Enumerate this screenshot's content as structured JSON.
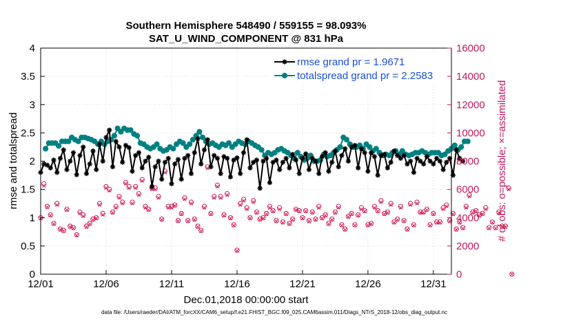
{
  "chart_data": {
    "type": "line",
    "title": [
      "Southern Hemisphere 548490 / 559155 = 98.093%",
      "SAT_U_WIND_COMPONENT @ 831 hPa"
    ],
    "xlabel": "Dec.01,2018 00:00:00 start",
    "ylabel": "rmse and totalspread",
    "ylabel_right": "# of obs: o=possible; ×=assimilated",
    "xlim": [
      0,
      31.375
    ],
    "ylim": [
      0,
      4
    ],
    "ylim_right": [
      0,
      16000
    ],
    "x_tick_values": [
      0,
      5,
      10,
      15,
      20,
      25,
      30
    ],
    "x_tick_labels": [
      "12/01",
      "12/06",
      "12/11",
      "12/16",
      "12/21",
      "12/26",
      "12/31"
    ],
    "y_ticks": [
      0,
      0.5,
      1,
      1.5,
      2,
      2.5,
      3,
      3.5,
      4
    ],
    "y_tick_labels": [
      "0",
      "0.5",
      "1",
      "1.5",
      "2",
      "2.5",
      "3",
      "3.5",
      "4"
    ],
    "y_right_ticks": [
      0,
      2000,
      4000,
      6000,
      8000,
      10000,
      12000,
      14000,
      16000
    ],
    "y_right_tick_labels": [
      "0",
      "2000",
      "4000",
      "6000",
      "8000",
      "10000",
      "12000",
      "14000",
      "16000"
    ],
    "footnote": "data file: /Users/raeder/DAI/ATM_forcXX/CAM6_setup/f.e21.FHIST_BGC.f09_025.CAM6assim.011/Diags_NTrS_2018-12/obs_diag_output.nc",
    "x_start": 0,
    "x_step": 0.25,
    "series": [
      {
        "name": "rmse grand pr = 1.9671",
        "color": "#000000",
        "marker": "asterisk",
        "values": [
          1.8,
          1.95,
          1.93,
          1.88,
          2.02,
          1.8,
          2.05,
          2.2,
          1.85,
          2.0,
          2.15,
          1.76,
          2.1,
          2.25,
          1.78,
          1.95,
          2.18,
          1.85,
          2.3,
          2.0,
          2.42,
          2.55,
          1.9,
          2.35,
          2.25,
          1.98,
          2.28,
          2.24,
          1.82,
          2.1,
          2.15,
          1.88,
          2.0,
          2.07,
          1.55,
          1.9,
          2.0,
          1.68,
          1.98,
          2.05,
          1.6,
          1.95,
          2.03,
          1.68,
          2.05,
          2.1,
          1.78,
          2.15,
          2.4,
          1.95,
          2.2,
          2.38,
          1.9,
          2.1,
          2.05,
          1.78,
          2.08,
          2.05,
          1.72,
          2.02,
          2.06,
          1.78,
          2.15,
          2.38,
          1.88,
          1.98,
          2.02,
          1.52,
          2.0,
          2.05,
          1.62,
          1.98,
          2.02,
          1.85,
          1.98,
          2.05,
          1.88,
          2.12,
          2.02,
          1.78,
          2.05,
          2.13,
          1.85,
          2.05,
          2.0,
          1.78,
          2.08,
          2.15,
          1.82,
          1.98,
          2.18,
          1.9,
          2.1,
          2.22,
          2.0,
          2.25,
          2.28,
          1.88,
          2.22,
          2.15,
          1.82,
          2.15,
          2.08,
          1.75,
          2.1,
          2.12,
          1.88,
          1.98,
          2.18,
          2.1,
          2.05,
          2.1,
          1.95,
          2.0,
          1.8,
          2.05,
          2.0,
          1.95,
          2.08,
          2.0,
          1.95,
          2.05,
          2.0,
          1.85,
          1.98,
          2.05,
          1.75,
          2.2,
          2.05,
          2.0
        ],
        "x_start": 0
      },
      {
        "name": "totalspread grand pr = 2.2583",
        "color": "#008080",
        "marker": "circle",
        "values": [
          2.22,
          2.32,
          2.32,
          2.32,
          2.27,
          2.35,
          2.35,
          2.35,
          2.42,
          2.38,
          2.35,
          2.42,
          2.42,
          2.4,
          2.38,
          2.35,
          2.3,
          2.35,
          2.3,
          2.35,
          2.38,
          2.45,
          2.58,
          2.52,
          2.58,
          2.55,
          2.55,
          2.48,
          2.45,
          2.32,
          2.3,
          2.25,
          2.22,
          2.25,
          2.3,
          2.22,
          2.18,
          2.2,
          2.25,
          2.22,
          2.3,
          2.35,
          2.32,
          2.25,
          2.3,
          2.38,
          2.45,
          2.52,
          2.42,
          2.35,
          2.3,
          2.32,
          2.28,
          2.25,
          2.3,
          2.28,
          2.32,
          2.25,
          2.3,
          2.35,
          2.32,
          2.3,
          2.35,
          2.32,
          2.28,
          2.25,
          2.2,
          2.1,
          2.15,
          2.12,
          2.15,
          2.2,
          2.22,
          2.18,
          2.15,
          2.1,
          2.05,
          2.15,
          2.08,
          2.02,
          2.05,
          2.1,
          2.0,
          2.0,
          2.02,
          2.12,
          2.08,
          2.1,
          2.15,
          2.2,
          2.25,
          2.42,
          2.38,
          2.3,
          2.25,
          2.25,
          2.28,
          2.22,
          2.3,
          2.25,
          2.18,
          2.22,
          2.15,
          2.1,
          2.12,
          2.1,
          2.15,
          2.18,
          2.12,
          2.18,
          2.12,
          2.1,
          2.12,
          2.15,
          2.15,
          2.18,
          2.15,
          2.12,
          2.15,
          2.15,
          2.15,
          2.1,
          2.12,
          2.18,
          2.22,
          2.28,
          2.2,
          2.25,
          2.35,
          2.35
        ],
        "x_start": 0.375
      },
      {
        "name": "# of obs possible",
        "axis": "right",
        "color": "#d0104c",
        "marker": "open-circle",
        "values": [
          4000,
          6400,
          4800,
          4200,
          3600,
          5000,
          3200,
          3100,
          4600,
          3400,
          3300,
          2800,
          4400,
          4200,
          3400,
          3600,
          3900,
          4000,
          5000,
          4300,
          6200,
          6000,
          4400,
          4800,
          5500,
          5100,
          6500,
          6200,
          5100,
          6200,
          5700,
          6700,
          4800,
          4600,
          6100,
          6100,
          5500,
          3900,
          7300,
          4800,
          4800,
          4900,
          3800,
          4300,
          5400,
          3800,
          5100,
          3900,
          3400,
          3100,
          4800,
          7600,
          4300,
          5500,
          6300,
          5500,
          4200,
          5700,
          4000,
          3500,
          1700,
          5000,
          5300,
          4700,
          4000,
          5200,
          4400,
          3900,
          4000,
          4300,
          4800,
          4500,
          3800,
          4700,
          3700,
          4300,
          3600,
          3900,
          4600,
          4500,
          4000,
          4500,
          3800,
          4400,
          3900,
          4800,
          4000,
          4200,
          3600,
          3900,
          4400,
          4800,
          3500,
          3200,
          4100,
          4300,
          3500,
          4200,
          4700,
          4500,
          3500,
          3600,
          4800,
          4500,
          5200,
          4300,
          4400,
          5000,
          3700,
          3900,
          4800,
          3800,
          3200,
          5000,
          3500,
          5100,
          4400,
          4400,
          4600,
          3500,
          4300,
          3700,
          3700,
          4700,
          4900,
          3800,
          4300,
          3200,
          3700,
          3300,
          4800,
          5600,
          4400,
          4500,
          4200,
          4300,
          4700,
          3300,
          3700,
          3300,
          4400,
          3400,
          3400,
          6100,
          0
        ],
        "x_start": 0
      },
      {
        "name": "# of obs assimilated",
        "axis": "right",
        "color": "#d0104c",
        "marker": "x",
        "values": [
          3950,
          6250,
          4750,
          4150,
          3550,
          4900,
          3150,
          3050,
          4550,
          3350,
          3250,
          2750,
          4300,
          4100,
          3350,
          3550,
          3850,
          3950,
          4900,
          4200,
          6100,
          5900,
          4350,
          4700,
          5400,
          5000,
          6400,
          6100,
          5000,
          6100,
          5600,
          6600,
          4700,
          4550,
          6000,
          6000,
          5400,
          3850,
          7200,
          4700,
          4700,
          4850,
          3750,
          4250,
          5300,
          3750,
          5000,
          3850,
          3350,
          3050,
          4700,
          7500,
          4250,
          5400,
          6200,
          5400,
          4150,
          5600,
          3950,
          3450,
          1650,
          4900,
          5200,
          4600,
          3950,
          5100,
          4350,
          3850,
          3950,
          4250,
          4700,
          4450,
          3750,
          4600,
          3650,
          4250,
          3550,
          3850,
          4550,
          4450,
          3950,
          4450,
          3750,
          4350,
          3850,
          4700,
          3950,
          4150,
          3550,
          3850,
          4350,
          4700,
          3450,
          3150,
          4050,
          4250,
          3450,
          4150,
          4600,
          4450,
          3450,
          3550,
          4700,
          4450,
          5100,
          4250,
          4350,
          4900,
          3650,
          3850,
          4700,
          3750,
          3150,
          4900,
          3450,
          5000,
          4350,
          4350,
          4550,
          3450,
          4250,
          3650,
          3650,
          4600,
          4800,
          3750,
          4250,
          3150,
          3650,
          3250,
          4700,
          5500,
          4350,
          4450,
          4150,
          4250,
          4600,
          3250,
          3650,
          3250,
          4350,
          3350,
          3350,
          6000,
          0
        ],
        "x_start": 0
      }
    ],
    "legend": [
      "rmse grand pr = 1.9671",
      "totalspread grand pr = 2.2583"
    ],
    "legend_position": "top-right",
    "grid": true
  }
}
